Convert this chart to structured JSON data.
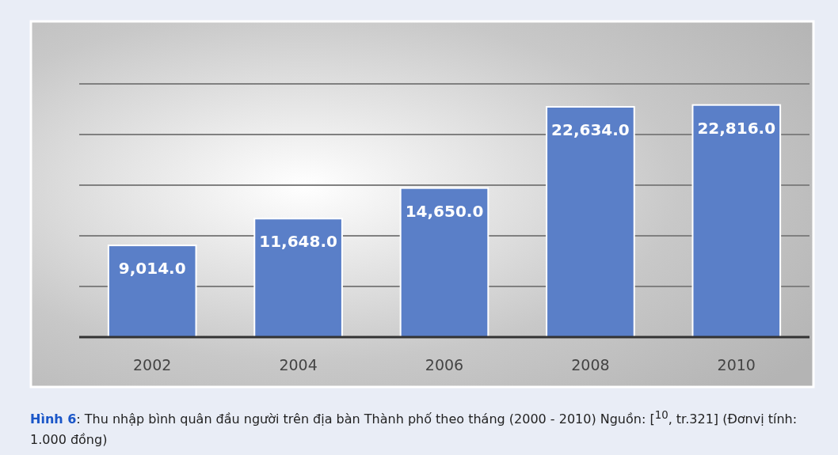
{
  "chart_data": {
    "type": "bar",
    "categories": [
      "2002",
      "2004",
      "2006",
      "2008",
      "2010"
    ],
    "values": [
      9014.0,
      11648.0,
      14650.0,
      22634.0,
      22816.0
    ],
    "value_labels": [
      "9,014.0",
      "11,648.0",
      "14,650.0",
      "22,634.0",
      "22,816.0"
    ],
    "color": "#5a7fc8",
    "tick_labels": "x",
    "annotations": [
      "Hình 6",
      ": Thu nhập bình quân đầu người trên địa bàn Thành phố theo tháng (2000 - 2010) Nguồn: [$^{10}$, tr.321] (Đơnvị tính: 1.000 đồng)"
    ]
  }
}
